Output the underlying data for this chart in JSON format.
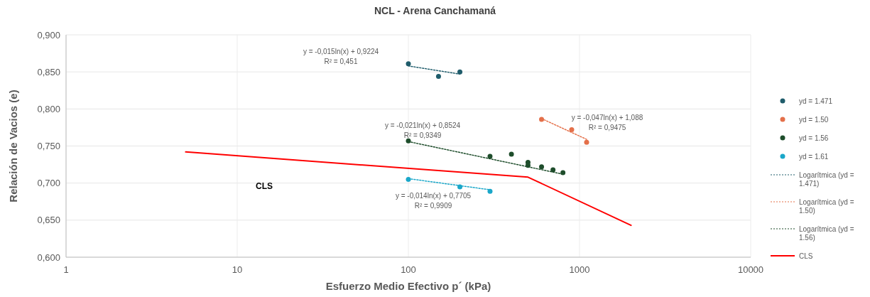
{
  "chart_data": {
    "type": "scatter",
    "title": "NCL - Arena Canchamaná",
    "xlabel": "Esfuerzo Medio Efectivo p´ (kPa)",
    "ylabel": "Relación de Vacios (e)",
    "log": "x",
    "grid": true,
    "legend": "right",
    "marker": "circle",
    "xlim": [
      1,
      10000
    ],
    "xticks": [
      1,
      10,
      100,
      1000,
      10000
    ],
    "ylim": [
      0.6,
      0.9
    ],
    "yticks": [
      {
        "value": 0.6,
        "label": "0,600"
      },
      {
        "value": 0.65,
        "label": "0,650"
      },
      {
        "value": 0.7,
        "label": "0,700"
      },
      {
        "value": 0.75,
        "label": "0,750"
      },
      {
        "value": 0.8,
        "label": "0,800"
      },
      {
        "value": 0.85,
        "label": "0,850"
      },
      {
        "value": 0.9,
        "label": "0,900"
      }
    ],
    "series": [
      {
        "name": "yd = 1.471",
        "color": "#1f5c6b",
        "x": [
          100,
          150,
          200
        ],
        "values": [
          0.861,
          0.844,
          0.85
        ]
      },
      {
        "name": "yd = 1.50",
        "color": "#e4704a",
        "x": [
          600,
          900,
          1100
        ],
        "values": [
          0.786,
          0.772,
          0.755
        ]
      },
      {
        "name": "yd = 1.56",
        "color": "#1e4d2b",
        "x": [
          100,
          300,
          400,
          500,
          500,
          600,
          700,
          800
        ],
        "values": [
          0.757,
          0.736,
          0.739,
          0.728,
          0.724,
          0.722,
          0.718,
          0.714
        ]
      },
      {
        "name": "yd = 1.61",
        "color": "#1aa7c9",
        "x": [
          100,
          200,
          300
        ],
        "values": [
          0.705,
          0.695,
          0.689
        ]
      },
      {
        "name": "Logarítmica (yd = 1.471)",
        "type": "line",
        "line_style": "dotted",
        "marker": "none",
        "color": "#1f5c6b",
        "x": [
          100,
          200
        ],
        "values": [
          0.858,
          0.847
        ]
      },
      {
        "name": "Logarítmica (yd = 1.50)",
        "type": "line",
        "line_style": "dotted",
        "marker": "none",
        "color": "#e4704a",
        "x": [
          600,
          1100
        ],
        "values": [
          0.787,
          0.759
        ]
      },
      {
        "name": "Logarítmica (yd = 1.56)",
        "type": "line",
        "line_style": "dotted",
        "marker": "none",
        "color": "#1e4d2b",
        "x": [
          100,
          800
        ],
        "values": [
          0.756,
          0.712
        ]
      },
      {
        "type": "line",
        "line_style": "dotted",
        "marker": "none",
        "color": "#1aa7c9",
        "x": [
          100,
          300
        ],
        "values": [
          0.706,
          0.691
        ]
      },
      {
        "name": "CLS",
        "type": "line",
        "line_style": "solid",
        "marker": "none",
        "color": "#ff0000",
        "x": [
          5,
          500,
          2000
        ],
        "values": [
          0.742,
          0.708,
          0.643
        ]
      }
    ],
    "annotations": [
      "y = -0,015ln(x) + 0,9224\nR² = 0,451",
      "y = -0,021ln(x) + 0,8524\nR² = 0,9349",
      "y = -0,047ln(x) + 1,088\nR² = 0,9475",
      "y = -0,014ln(x) + 0,7705\nR² = 0,9909",
      "CLS"
    ]
  }
}
